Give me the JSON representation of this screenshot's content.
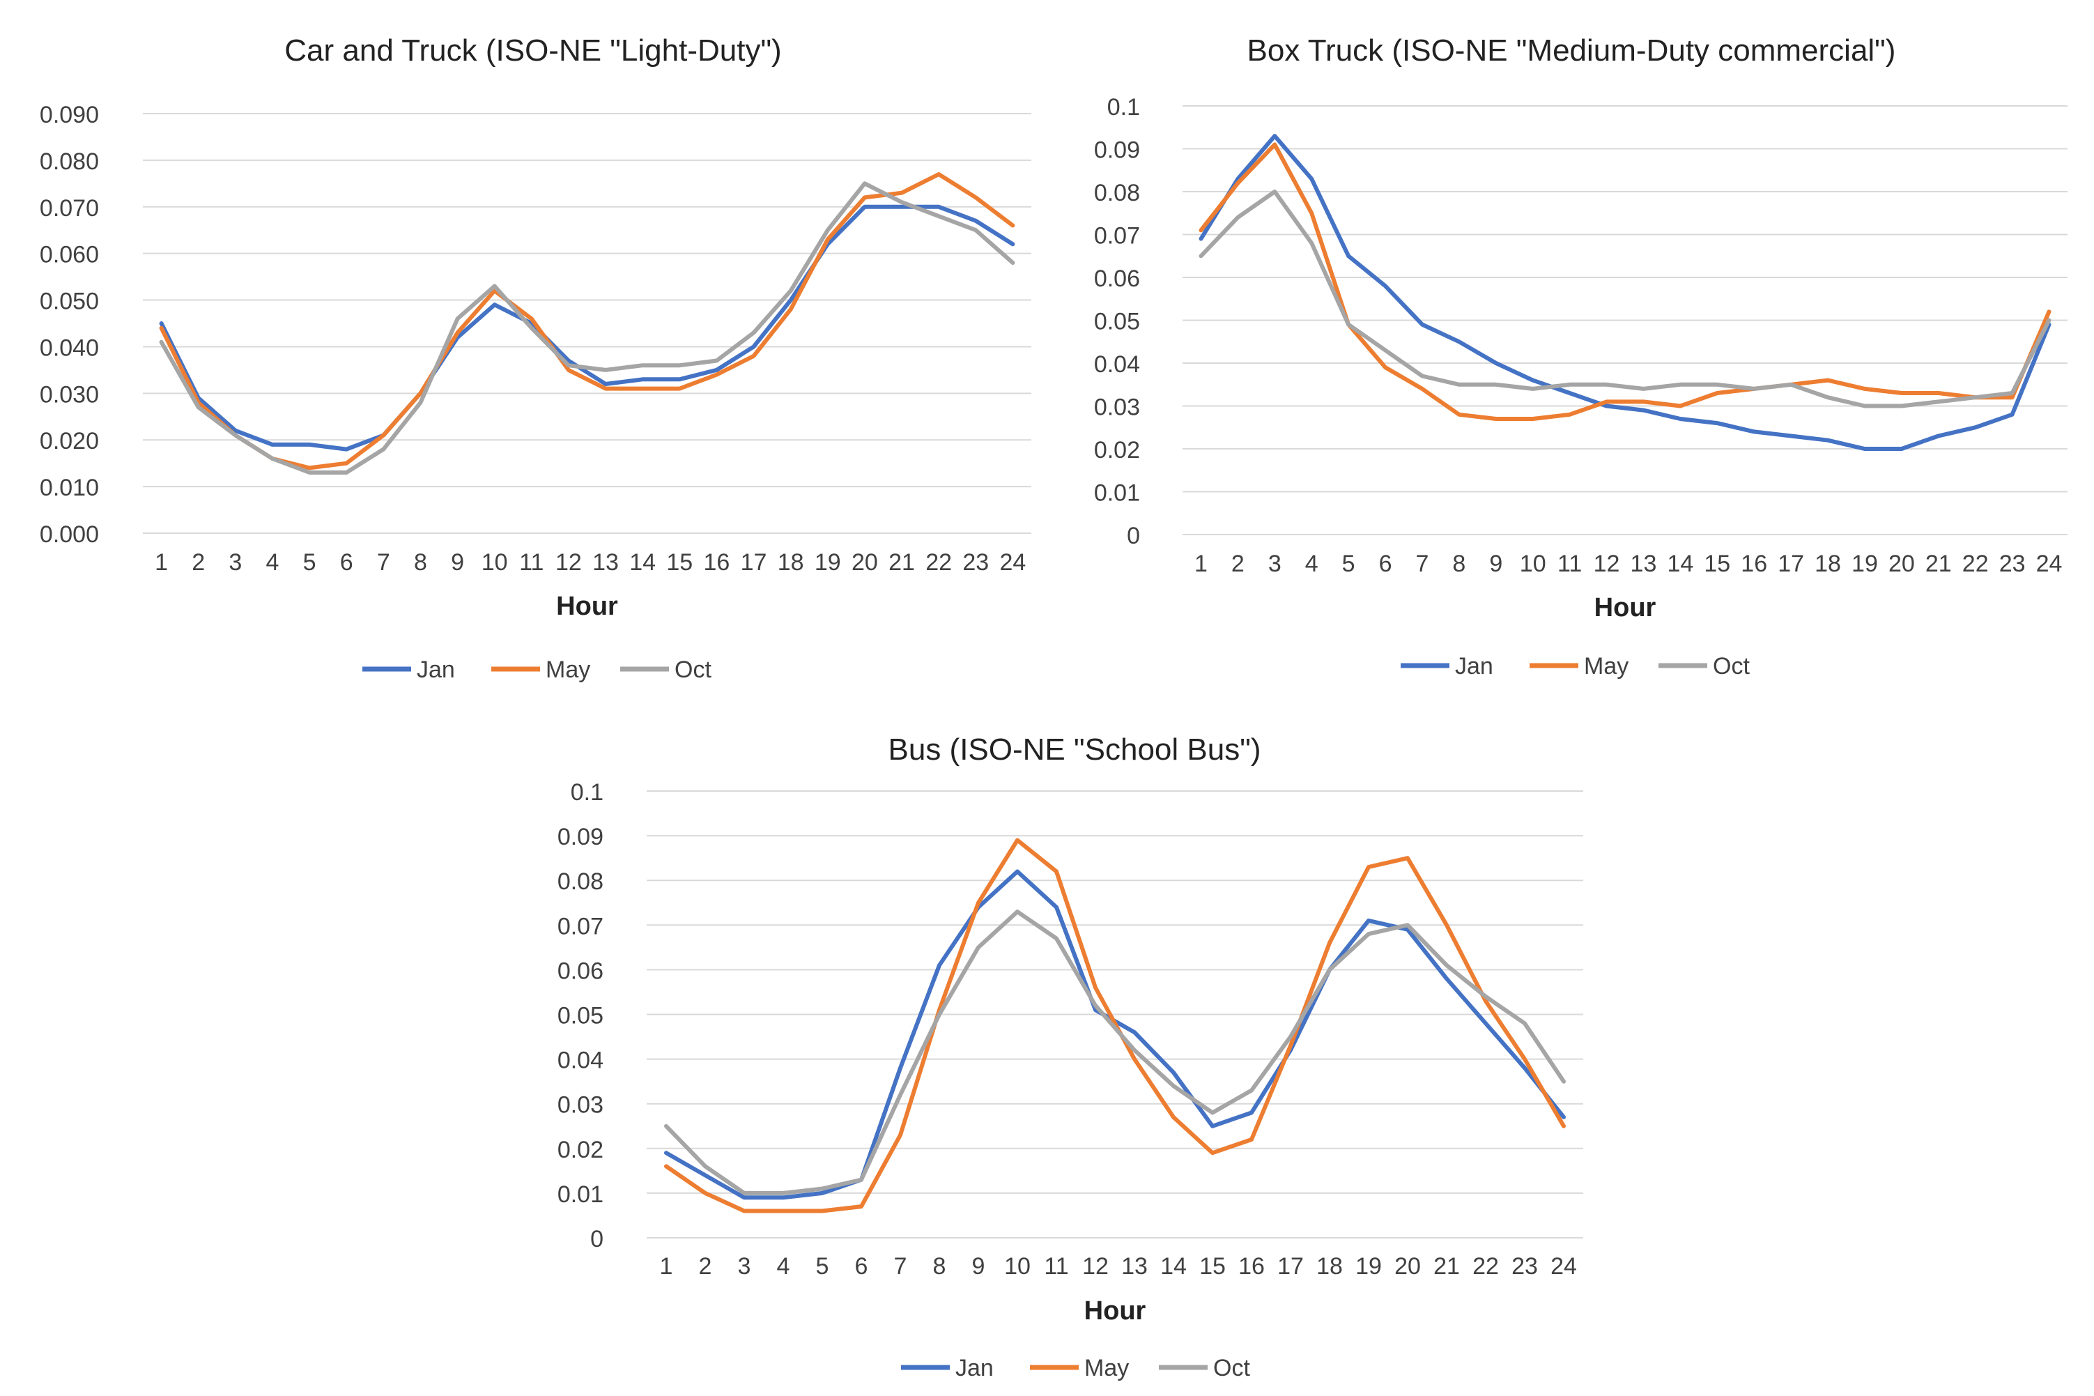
{
  "chart_data": [
    {
      "type": "line",
      "title": "Car and Truck (ISO-NE \"Light-Duty\")",
      "xlabel": "Hour",
      "ylabel": "",
      "ylim": [
        0,
        0.09
      ],
      "yticks": [
        "0.000",
        "0.010",
        "0.020",
        "0.030",
        "0.040",
        "0.050",
        "0.060",
        "0.070",
        "0.080",
        "0.090"
      ],
      "x": [
        "1",
        "2",
        "3",
        "4",
        "5",
        "6",
        "7",
        "8",
        "9",
        "10",
        "11",
        "12",
        "13",
        "14",
        "15",
        "16",
        "17",
        "18",
        "19",
        "20",
        "21",
        "22",
        "23",
        "24"
      ],
      "grid": true,
      "legend": "bottom",
      "series": [
        {
          "name": "Jan",
          "color": "#4472C4",
          "values": [
            0.045,
            0.029,
            0.022,
            0.019,
            0.019,
            0.018,
            0.021,
            0.03,
            0.042,
            0.049,
            0.045,
            0.037,
            0.032,
            0.033,
            0.033,
            0.035,
            0.04,
            0.05,
            0.062,
            0.07,
            0.07,
            0.07,
            0.067,
            0.062
          ]
        },
        {
          "name": "May",
          "color": "#ED7D31",
          "values": [
            0.044,
            0.028,
            0.021,
            0.016,
            0.014,
            0.015,
            0.021,
            0.03,
            0.043,
            0.052,
            0.046,
            0.035,
            0.031,
            0.031,
            0.031,
            0.034,
            0.038,
            0.048,
            0.063,
            0.072,
            0.073,
            0.077,
            0.072,
            0.066
          ]
        },
        {
          "name": "Oct",
          "color": "#A5A5A5",
          "values": [
            0.041,
            0.027,
            0.021,
            0.016,
            0.013,
            0.013,
            0.018,
            0.028,
            0.046,
            0.053,
            0.044,
            0.036,
            0.035,
            0.036,
            0.036,
            0.037,
            0.043,
            0.052,
            0.065,
            0.075,
            0.071,
            0.068,
            0.065,
            0.058
          ]
        }
      ]
    },
    {
      "type": "line",
      "title": "Box Truck (ISO-NE \"Medium-Duty commercial\")",
      "xlabel": "Hour",
      "ylabel": "",
      "ylim": [
        0,
        0.1
      ],
      "yticks": [
        "0",
        "0.01",
        "0.02",
        "0.03",
        "0.04",
        "0.05",
        "0.06",
        "0.07",
        "0.08",
        "0.09",
        "0.1"
      ],
      "x": [
        "1",
        "2",
        "3",
        "4",
        "5",
        "6",
        "7",
        "8",
        "9",
        "10",
        "11",
        "12",
        "13",
        "14",
        "15",
        "16",
        "17",
        "18",
        "19",
        "20",
        "21",
        "22",
        "23",
        "24"
      ],
      "grid": true,
      "legend": "bottom",
      "series": [
        {
          "name": "Jan",
          "color": "#4472C4",
          "values": [
            0.069,
            0.083,
            0.093,
            0.083,
            0.065,
            0.058,
            0.049,
            0.045,
            0.04,
            0.036,
            0.033,
            0.03,
            0.029,
            0.027,
            0.026,
            0.024,
            0.023,
            0.022,
            0.02,
            0.02,
            0.023,
            0.025,
            0.028,
            0.049
          ]
        },
        {
          "name": "May",
          "color": "#ED7D31",
          "values": [
            0.071,
            0.082,
            0.091,
            0.075,
            0.049,
            0.039,
            0.034,
            0.028,
            0.027,
            0.027,
            0.028,
            0.031,
            0.031,
            0.03,
            0.033,
            0.034,
            0.035,
            0.036,
            0.034,
            0.033,
            0.033,
            0.032,
            0.032,
            0.052
          ]
        },
        {
          "name": "Oct",
          "color": "#A5A5A5",
          "values": [
            0.065,
            0.074,
            0.08,
            0.068,
            0.049,
            0.043,
            0.037,
            0.035,
            0.035,
            0.034,
            0.035,
            0.035,
            0.034,
            0.035,
            0.035,
            0.034,
            0.035,
            0.032,
            0.03,
            0.03,
            0.031,
            0.032,
            0.033,
            0.05
          ]
        }
      ]
    },
    {
      "type": "line",
      "title": "Bus (ISO-NE \"School Bus\")",
      "xlabel": "Hour",
      "ylabel": "",
      "ylim": [
        0,
        0.1
      ],
      "yticks": [
        "0",
        "0.01",
        "0.02",
        "0.03",
        "0.04",
        "0.05",
        "0.06",
        "0.07",
        "0.08",
        "0.09",
        "0.1"
      ],
      "x": [
        "1",
        "2",
        "3",
        "4",
        "5",
        "6",
        "7",
        "8",
        "9",
        "10",
        "11",
        "12",
        "13",
        "14",
        "15",
        "16",
        "17",
        "18",
        "19",
        "20",
        "21",
        "22",
        "23",
        "24"
      ],
      "grid": true,
      "legend": "bottom",
      "series": [
        {
          "name": "Jan",
          "color": "#4472C4",
          "values": [
            0.019,
            0.014,
            0.009,
            0.009,
            0.01,
            0.013,
            0.038,
            0.061,
            0.074,
            0.082,
            0.074,
            0.051,
            0.046,
            0.037,
            0.025,
            0.028,
            0.042,
            0.06,
            0.071,
            0.069,
            0.058,
            0.048,
            0.038,
            0.027
          ]
        },
        {
          "name": "May",
          "color": "#ED7D31",
          "values": [
            0.016,
            0.01,
            0.006,
            0.006,
            0.006,
            0.007,
            0.023,
            0.051,
            0.075,
            0.089,
            0.082,
            0.056,
            0.04,
            0.027,
            0.019,
            0.022,
            0.043,
            0.066,
            0.083,
            0.085,
            0.07,
            0.053,
            0.04,
            0.025
          ]
        },
        {
          "name": "Oct",
          "color": "#A5A5A5",
          "values": [
            0.025,
            0.016,
            0.01,
            0.01,
            0.011,
            0.013,
            0.032,
            0.05,
            0.065,
            0.073,
            0.067,
            0.052,
            0.042,
            0.034,
            0.028,
            0.033,
            0.045,
            0.06,
            0.068,
            0.07,
            0.061,
            0.054,
            0.048,
            0.035
          ]
        }
      ]
    }
  ]
}
